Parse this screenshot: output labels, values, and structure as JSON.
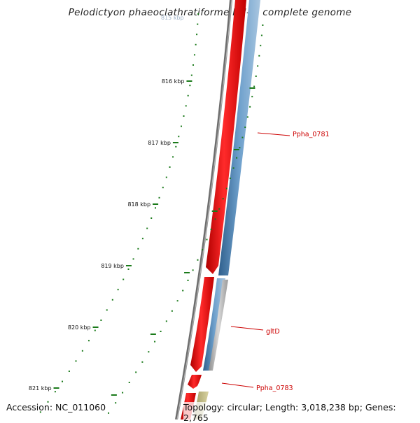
{
  "title": "Pelodictyon phaeoclathratiforme BU-1, complete genome",
  "footer": {
    "accession": "Accession: NC_011060",
    "summary": "Topology: circular; Length: 3,018,238 bp; Genes: 2,765"
  },
  "ruler": {
    "ticks": [
      "816 kbp",
      "817 kbp",
      "818 kbp",
      "819 kbp",
      "820 kbp",
      "821 kbp"
    ],
    "partial_top_label": "815 kbp"
  },
  "genes": [
    {
      "name": "Ppha_0781"
    },
    {
      "name": "gltD"
    },
    {
      "name": "Ppha_0783"
    }
  ],
  "colors": {
    "forward_gene": "#ff0000",
    "reverse_gene": "#4a7fb0",
    "tick": "#1a7a1a",
    "backbone": "#777777",
    "gene_label": "#cc0000",
    "rna_like": "#c9c28a"
  }
}
